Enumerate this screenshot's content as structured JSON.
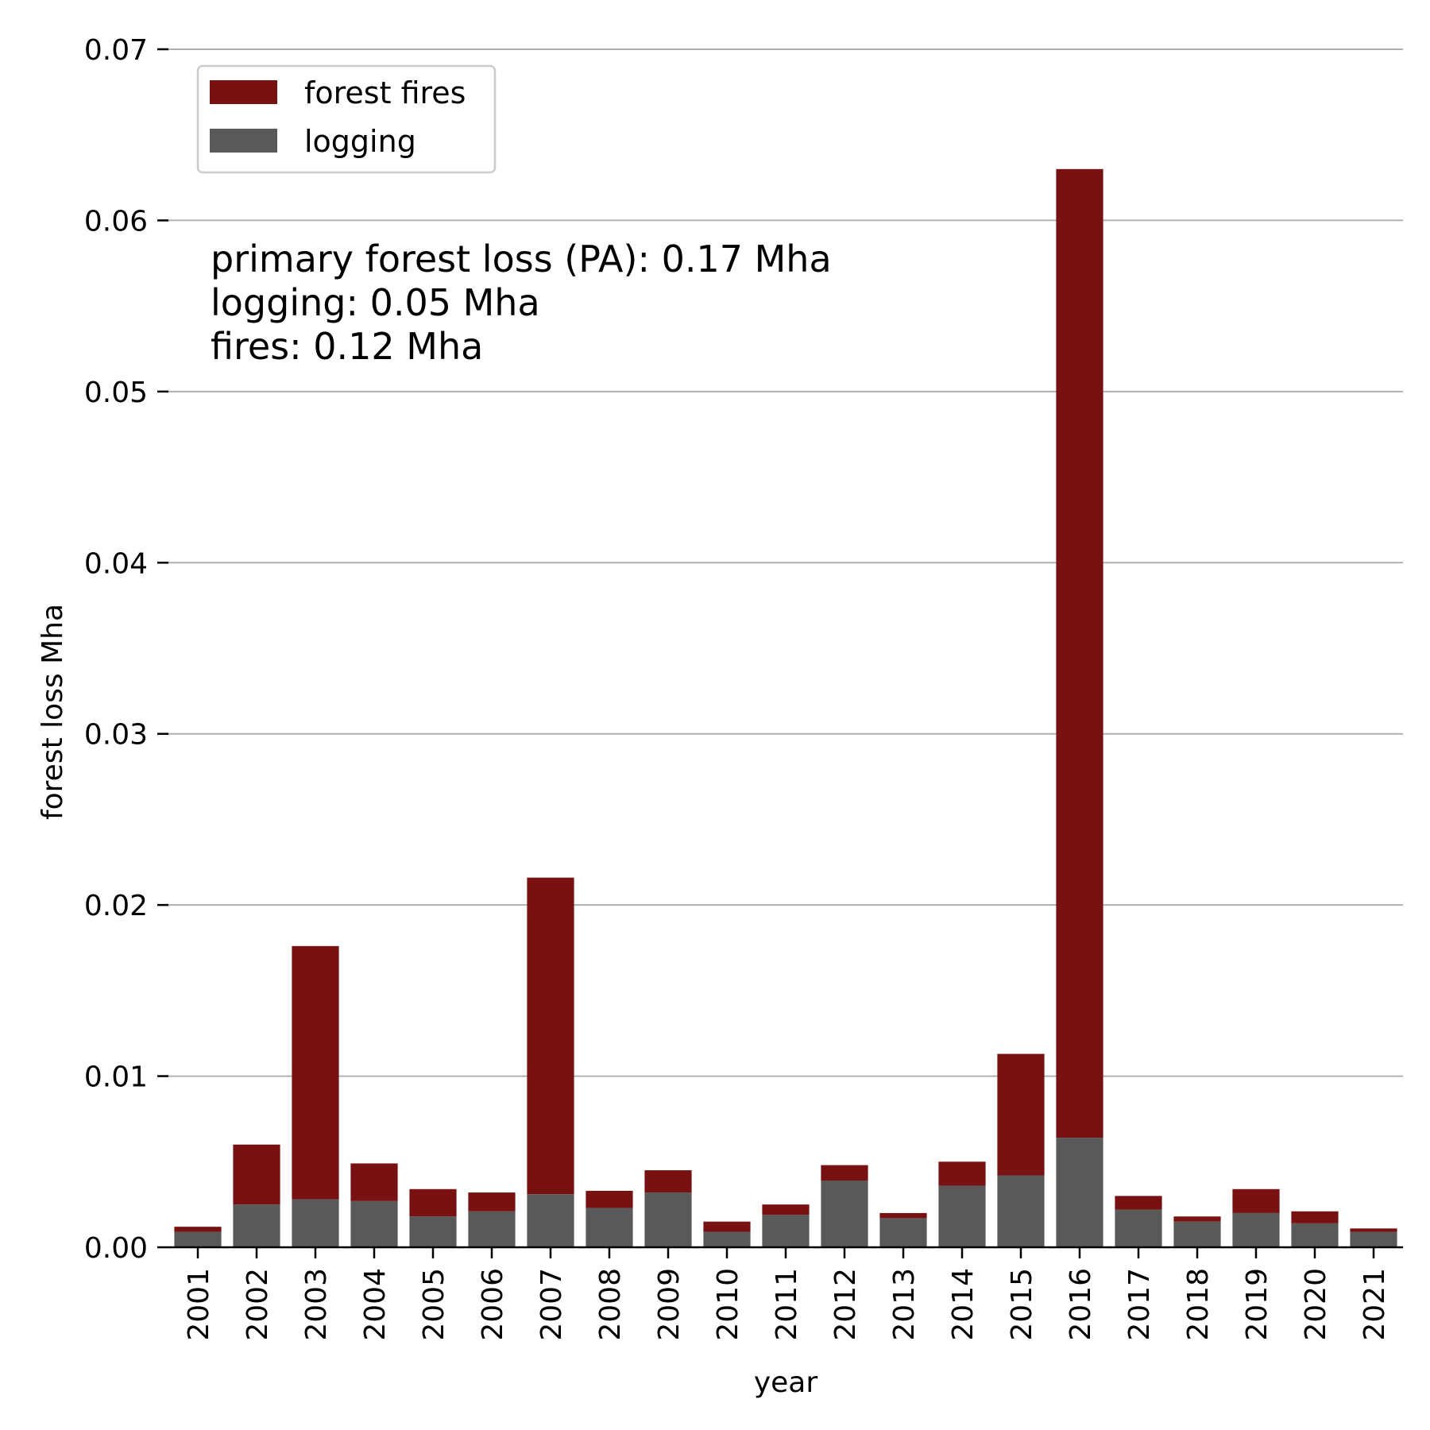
{
  "chart_data": {
    "type": "bar",
    "stacked": true,
    "categories": [
      "2001",
      "2002",
      "2003",
      "2004",
      "2005",
      "2006",
      "2007",
      "2008",
      "2009",
      "2010",
      "2011",
      "2012",
      "2013",
      "2014",
      "2015",
      "2016",
      "2017",
      "2018",
      "2019",
      "2020",
      "2021"
    ],
    "series": [
      {
        "name": "logging",
        "color": "#595959",
        "values": [
          0.0009,
          0.0025,
          0.0028,
          0.0027,
          0.0018,
          0.0021,
          0.0031,
          0.0023,
          0.0032,
          0.0009,
          0.0019,
          0.0039,
          0.0017,
          0.0036,
          0.0042,
          0.0064,
          0.0022,
          0.0015,
          0.002,
          0.0014,
          0.0009
        ]
      },
      {
        "name": "forest fires",
        "color": "#781111",
        "values": [
          0.0003,
          0.0035,
          0.0148,
          0.0022,
          0.0016,
          0.0011,
          0.0185,
          0.001,
          0.0013,
          0.0006,
          0.0006,
          0.0009,
          0.0003,
          0.0014,
          0.0071,
          0.0566,
          0.0008,
          0.0003,
          0.0014,
          0.0007,
          0.0002
        ]
      }
    ],
    "title": "",
    "xlabel": "year",
    "ylabel": "forest loss Mha",
    "ylim": [
      0,
      0.07
    ],
    "yticks": [
      "0.00",
      "0.01",
      "0.02",
      "0.03",
      "0.04",
      "0.05",
      "0.06",
      "0.07"
    ],
    "grid": "horizontal",
    "legend_position": "top-left",
    "legend_order": [
      "forest fires",
      "logging"
    ],
    "annotation": [
      "primary forest loss (PA): 0.17 Mha",
      "logging: 0.05 Mha",
      "fires: 0.12 Mha"
    ]
  }
}
